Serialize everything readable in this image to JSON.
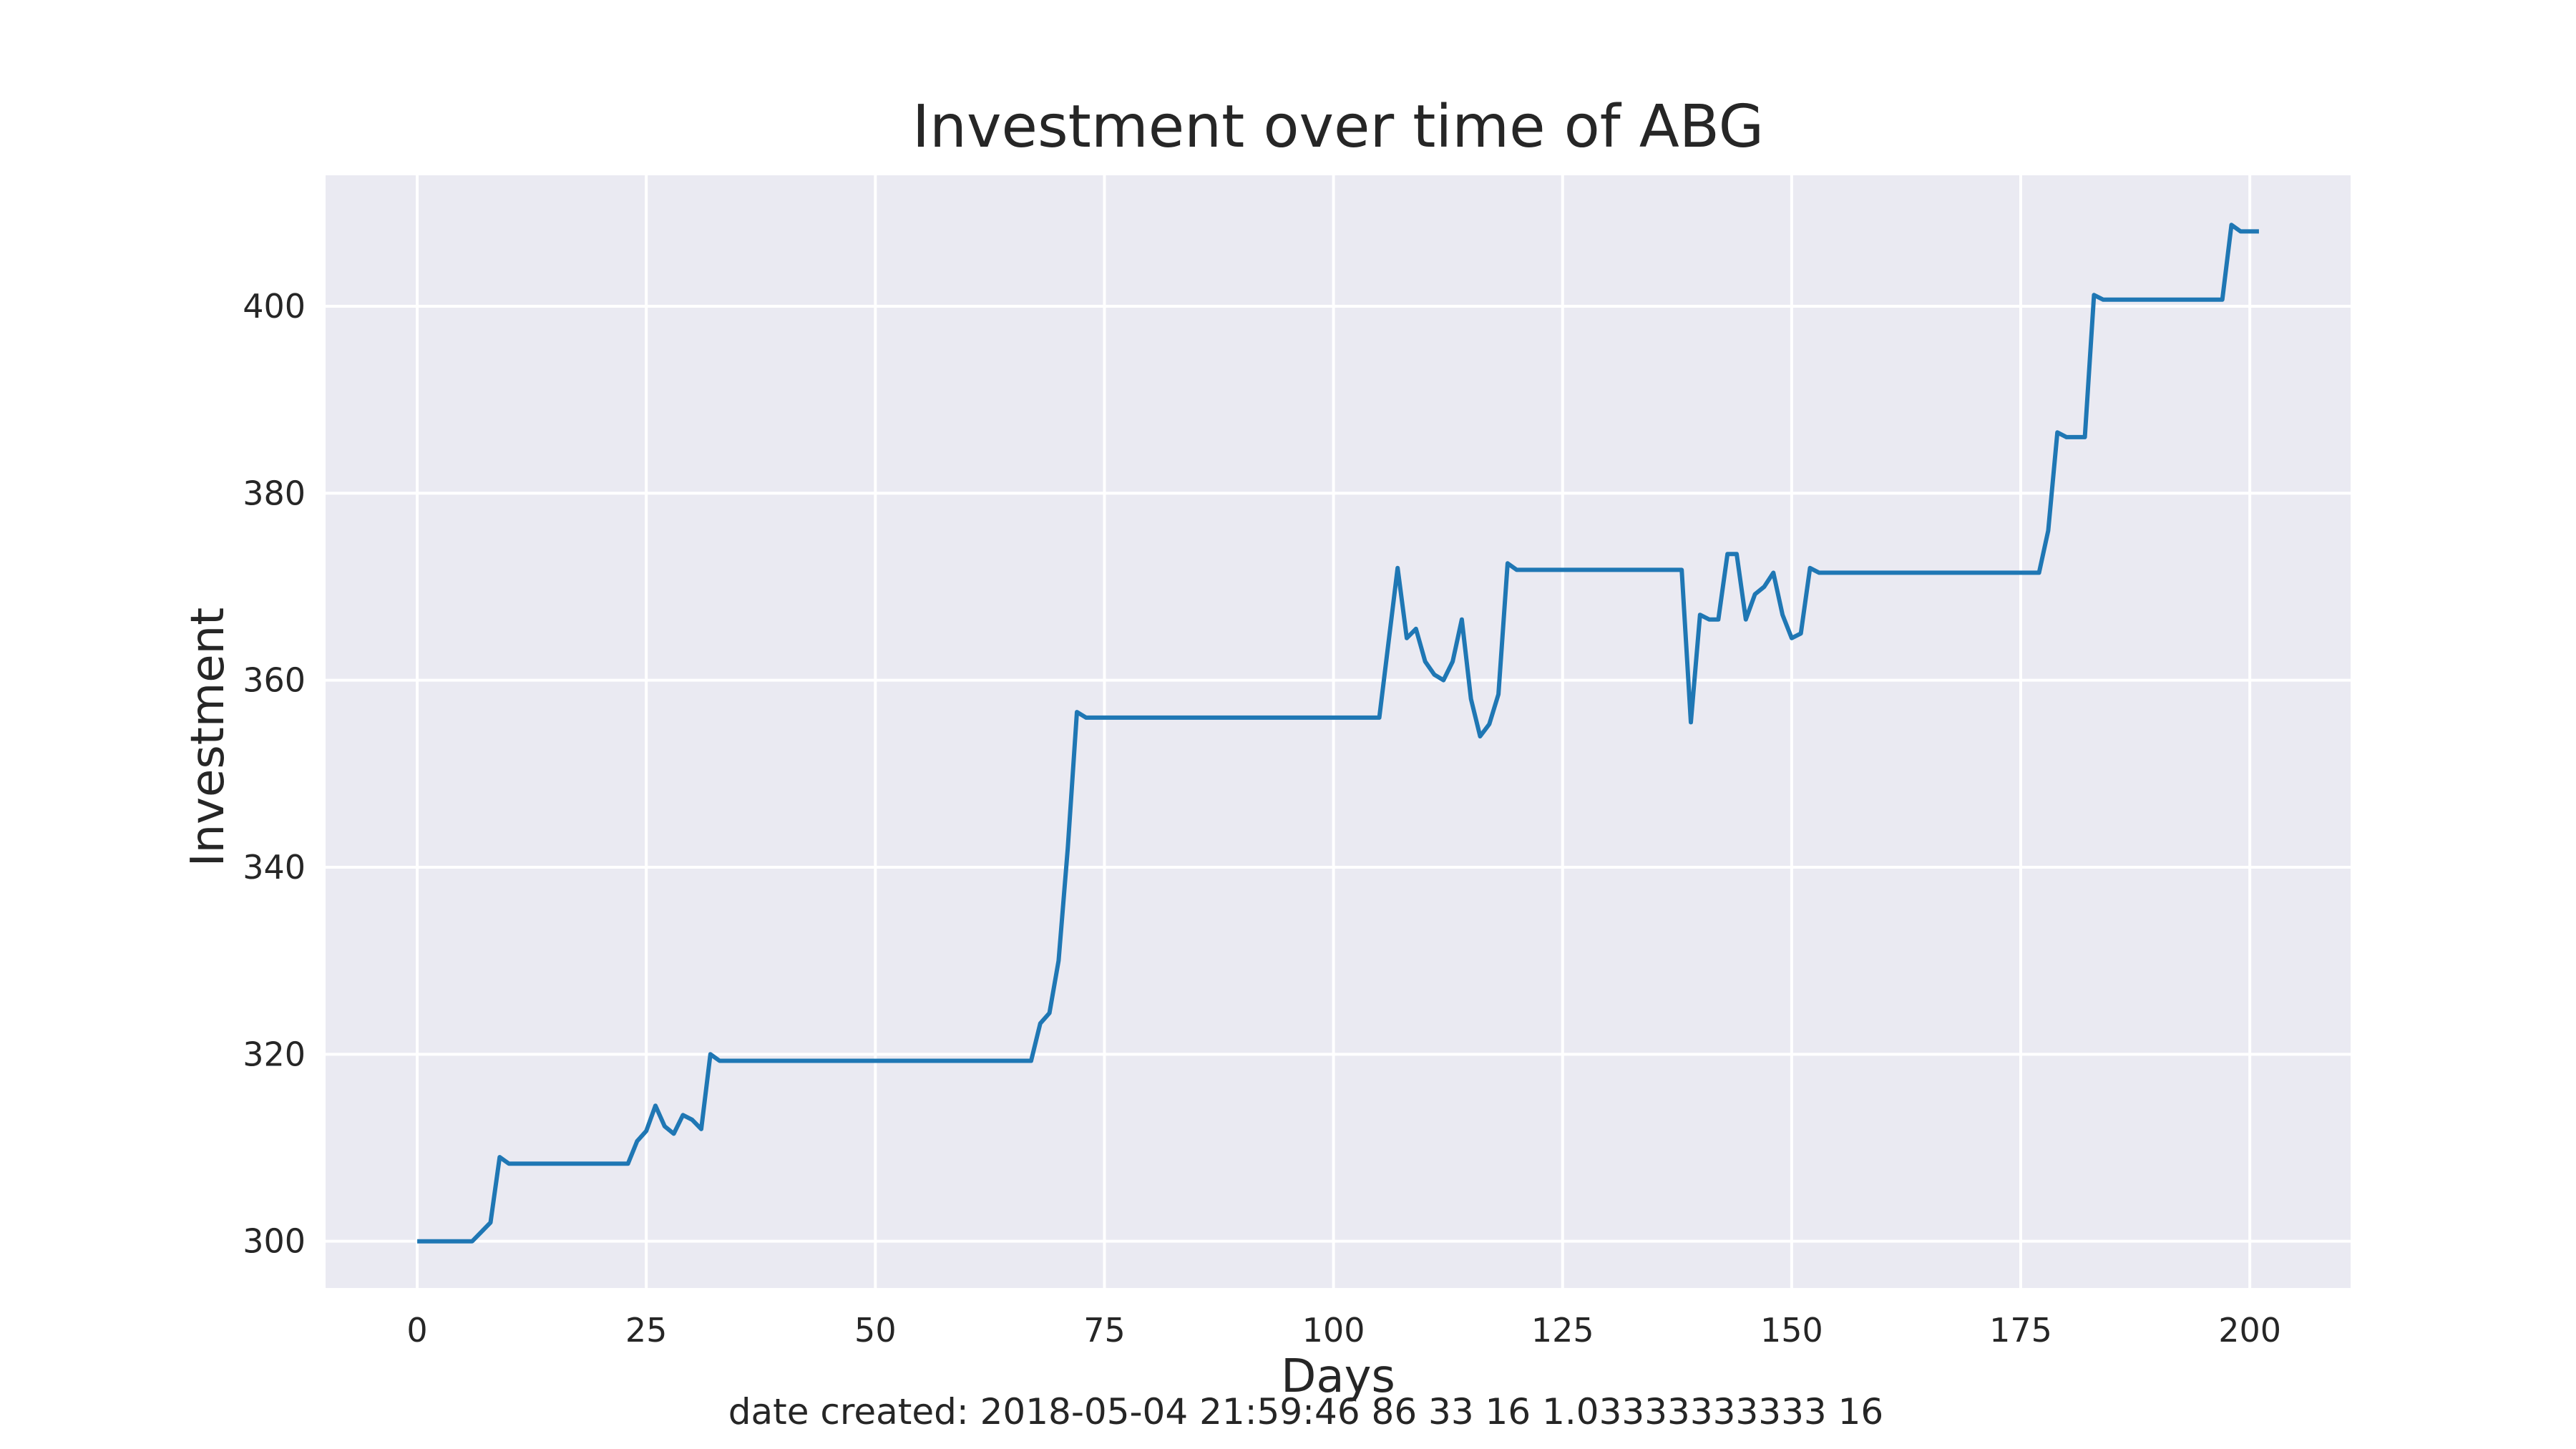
{
  "chart_data": {
    "type": "line",
    "title": "Investment over time of ABG",
    "xlabel": "Days",
    "ylabel": "Investment",
    "xlim": [
      -10,
      211
    ],
    "ylim": [
      295,
      414
    ],
    "xticks": [
      0,
      25,
      50,
      75,
      100,
      125,
      150,
      175,
      200
    ],
    "yticks": [
      300,
      320,
      340,
      360,
      380,
      400
    ],
    "xtick_labels": [
      "0",
      "25",
      "50",
      "75",
      "100",
      "125",
      "150",
      "175",
      "200"
    ],
    "ytick_labels": [
      "300",
      "320",
      "340",
      "360",
      "380",
      "400"
    ],
    "grid": true,
    "background": "#eaeaf2",
    "line_color": "#1f77b4",
    "footer": "date created: 2018-05-04 21:59:46 86 33 16 1.03333333333 16",
    "series": [
      {
        "x": [
          0,
          6,
          7,
          8,
          9,
          10,
          23,
          24,
          25,
          26,
          27,
          28,
          29,
          30,
          31,
          32,
          33,
          67,
          68,
          69,
          70,
          71,
          72,
          73,
          105,
          106,
          107,
          108,
          109,
          110,
          111,
          112,
          113,
          114,
          115,
          116,
          117,
          118,
          119,
          120,
          138,
          139,
          140,
          141,
          142,
          143,
          144,
          145,
          146,
          147,
          148,
          149,
          150,
          151,
          152,
          153,
          177,
          178,
          179,
          180,
          182,
          183,
          184,
          197,
          198,
          199,
          201
        ],
        "y": [
          300,
          300,
          301,
          302,
          309,
          308.3,
          308.3,
          310.7,
          311.8,
          314.5,
          312.3,
          311.5,
          313.5,
          313,
          312,
          320,
          319.3,
          319.3,
          323.3,
          324.4,
          330,
          342,
          356.6,
          356,
          356,
          364,
          372,
          364.5,
          365.5,
          362,
          360.6,
          360,
          362,
          366.5,
          358,
          354,
          355.3,
          358.5,
          372.5,
          371.8,
          371.8,
          355.5,
          367,
          366.5,
          366.5,
          373.5,
          373.5,
          366.5,
          369.2,
          370,
          371.5,
          367,
          364.5,
          365,
          372,
          371.5,
          371.5,
          376,
          386.5,
          386,
          386,
          401.2,
          400.7,
          400.7,
          408.7,
          408,
          408
        ]
      }
    ]
  }
}
